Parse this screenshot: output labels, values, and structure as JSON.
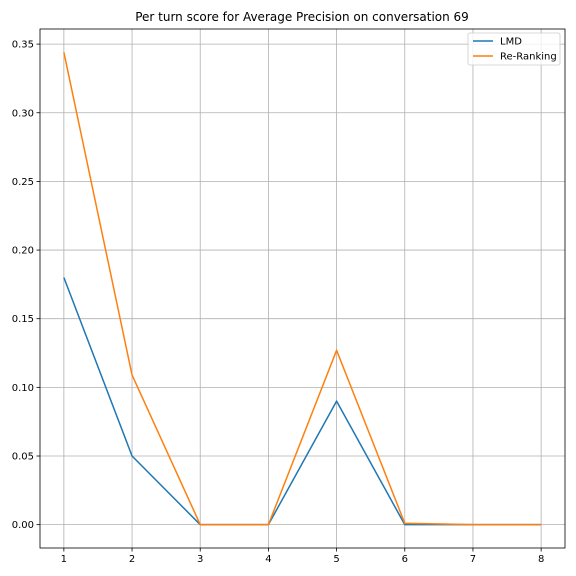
{
  "chart_data": {
    "type": "line",
    "title": "Per turn score for Average Precision on conversation 69",
    "xlabel": "",
    "ylabel": "",
    "x": [
      1,
      2,
      3,
      4,
      5,
      6,
      7,
      8
    ],
    "xticks": [
      "1",
      "2",
      "3",
      "4",
      "5",
      "6",
      "7",
      "8"
    ],
    "xlim": [
      0.65,
      8.35
    ],
    "yticks": [
      "0.00",
      "0.05",
      "0.10",
      "0.15",
      "0.20",
      "0.25",
      "0.30",
      "0.35"
    ],
    "ytick_values": [
      0,
      0.05,
      0.1,
      0.15,
      0.2,
      0.25,
      0.3,
      0.35
    ],
    "ylim": [
      -0.017,
      0.361
    ],
    "grid": true,
    "legend_position": "top-right",
    "series": [
      {
        "name": "LMD",
        "color": "#1f77b4",
        "values": [
          0.18,
          0.05,
          0.0,
          0.0,
          0.09,
          0.0,
          0.0,
          0.0
        ]
      },
      {
        "name": "Re-Ranking",
        "color": "#ff7f0e",
        "values": [
          0.344,
          0.109,
          0.0,
          0.0,
          0.127,
          0.001,
          0.0,
          0.0
        ]
      }
    ]
  }
}
